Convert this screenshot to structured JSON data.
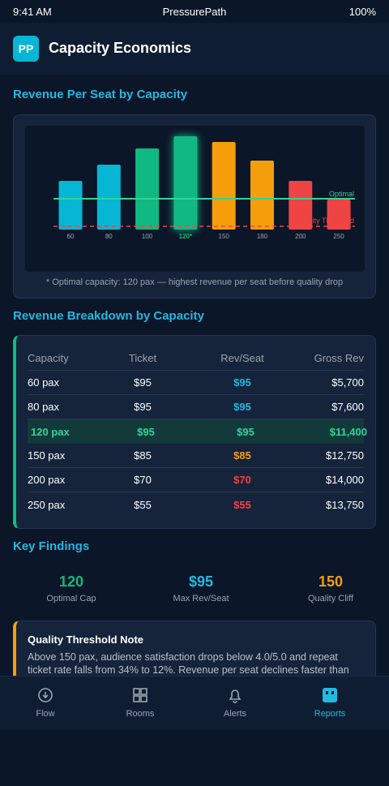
{
  "status_bar": {
    "time": "9:41 AM",
    "app": "PressurePath",
    "battery": "100%"
  },
  "header": {
    "logo": "PP",
    "title": "Capacity Economics"
  },
  "chart_data": {
    "type": "bar",
    "title": "Revenue Per Seat by Capacity",
    "categories": [
      "60",
      "80",
      "100",
      "120*",
      "150",
      "180",
      "200",
      "250"
    ],
    "values": [
      60,
      80,
      100,
      115,
      108,
      85,
      60,
      37
    ],
    "colors": [
      "#06b6d4",
      "#06b6d4",
      "#10b981",
      "#10b981",
      "#f59e0b",
      "#f59e0b",
      "#ef4444",
      "#ef4444"
    ],
    "ylim": [
      0,
      125
    ],
    "reference_lines": [
      {
        "label": "Optimal",
        "value": 38,
        "color": "#34d399"
      },
      {
        "label": "Quality Threshold",
        "value": 4,
        "color": "#ef4444"
      }
    ],
    "note": "* Optimal capacity: 120 pax — highest revenue per seat before quality drop"
  },
  "table": {
    "title": "Revenue Breakdown by Capacity",
    "columns": [
      "Capacity",
      "Ticket",
      "Rev/Seat",
      "Gross Rev"
    ],
    "rows": [
      [
        "60 pax",
        "$95",
        "$95",
        "$5,700"
      ],
      [
        "80 pax",
        "$95",
        "$95",
        "$7,600"
      ],
      [
        "120 pax",
        "$95",
        "$95",
        "$11,400"
      ],
      [
        "150 pax",
        "$85",
        "$85",
        "$12,750"
      ],
      [
        "200 pax",
        "$70",
        "$70",
        "$14,000"
      ],
      [
        "250 pax",
        "$55",
        "$55",
        "$13,750"
      ]
    ]
  },
  "findings": {
    "title": "Key Findings",
    "items": [
      {
        "value": "120",
        "label": "Optimal Cap"
      },
      {
        "value": "$95",
        "label": "Max Rev/Seat"
      },
      {
        "value": "150",
        "label": "Quality Cliff"
      }
    ]
  },
  "note": {
    "title": "Quality Threshold Note",
    "text": "Above 150 pax, audience satisfaction drops below 4.0/5.0 and repeat ticket rate falls from 34% to 12%. Revenue per seat declines faster than"
  },
  "nav": [
    "Flow",
    "Rooms",
    "Alerts",
    "Reports"
  ]
}
